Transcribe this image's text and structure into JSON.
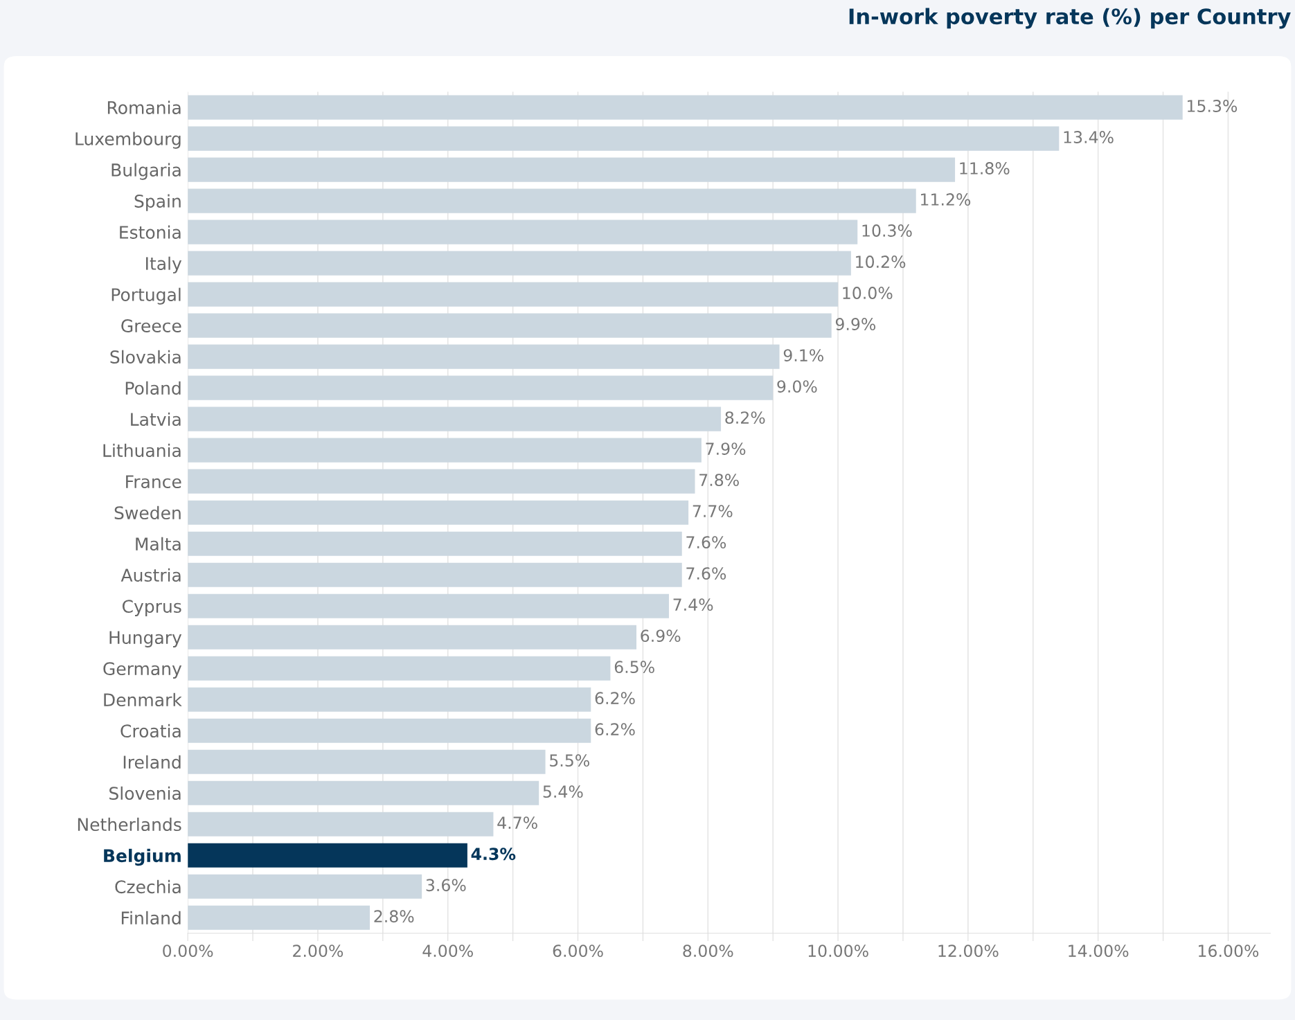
{
  "chart_data": {
    "type": "bar",
    "orientation": "horizontal",
    "title": "In-work poverty rate (%) per Country",
    "categories": [
      "Romania",
      "Luxembourg",
      "Bulgaria",
      "Spain",
      "Estonia",
      "Italy",
      "Portugal",
      "Greece",
      "Slovakia",
      "Poland",
      "Latvia",
      "Lithuania",
      "France",
      "Sweden",
      "Malta",
      "Austria",
      "Cyprus",
      "Hungary",
      "Germany",
      "Denmark",
      "Croatia",
      "Ireland",
      "Slovenia",
      "Netherlands",
      "Belgium",
      "Czechia",
      "Finland"
    ],
    "values": [
      15.3,
      13.4,
      11.8,
      11.2,
      10.3,
      10.2,
      10.0,
      9.9,
      9.1,
      9.0,
      8.2,
      7.9,
      7.8,
      7.7,
      7.6,
      7.6,
      7.4,
      6.9,
      6.5,
      6.2,
      6.2,
      5.5,
      5.4,
      4.7,
      4.3,
      3.6,
      2.8
    ],
    "value_labels": [
      "15.3%",
      "13.4%",
      "11.8%",
      "11.2%",
      "10.3%",
      "10.2%",
      "10.0%",
      "9.9%",
      "9.1%",
      "9.0%",
      "8.2%",
      "7.9%",
      "7.8%",
      "7.7%",
      "7.6%",
      "7.6%",
      "7.4%",
      "6.9%",
      "6.5%",
      "6.2%",
      "6.2%",
      "5.5%",
      "5.4%",
      "4.7%",
      "4.3%",
      "3.6%",
      "2.8%"
    ],
    "colors": [
      "#cbd7e0",
      "#cbd7e0",
      "#cbd7e0",
      "#cbd7e0",
      "#cbd7e0",
      "#cbd7e0",
      "#cbd7e0",
      "#cbd7e0",
      "#cbd7e0",
      "#cbd7e0",
      "#cbd7e0",
      "#cbd7e0",
      "#cbd7e0",
      "#cbd7e0",
      "#cbd7e0",
      "#cbd7e0",
      "#cbd7e0",
      "#cbd7e0",
      "#cbd7e0",
      "#cbd7e0",
      "#cbd7e0",
      "#cbd7e0",
      "#cbd7e0",
      "#cbd7e0",
      "#05365a",
      "#cbd7e0",
      "#cbd7e0"
    ],
    "xlim": [
      0,
      16.65
    ],
    "xticks": [
      {
        "value": 0,
        "label": "0.00%"
      },
      {
        "value": 1,
        "label": null
      },
      {
        "value": 2,
        "label": "2.00%"
      },
      {
        "value": 3,
        "label": null
      },
      {
        "value": 4,
        "label": "4.00%"
      },
      {
        "value": 5,
        "label": null
      },
      {
        "value": 6,
        "label": "6.00%"
      },
      {
        "value": 7,
        "label": null
      },
      {
        "value": 8,
        "label": "8.00%"
      },
      {
        "value": 9,
        "label": null
      },
      {
        "value": 10,
        "label": "10.00%"
      },
      {
        "value": 11,
        "label": null
      },
      {
        "value": 12,
        "label": "12.00%"
      },
      {
        "value": 13,
        "label": null
      },
      {
        "value": 14,
        "label": "14.00%"
      },
      {
        "value": 15,
        "label": null
      },
      {
        "value": 16,
        "label": "16.00%"
      }
    ],
    "grid": "x"
  }
}
